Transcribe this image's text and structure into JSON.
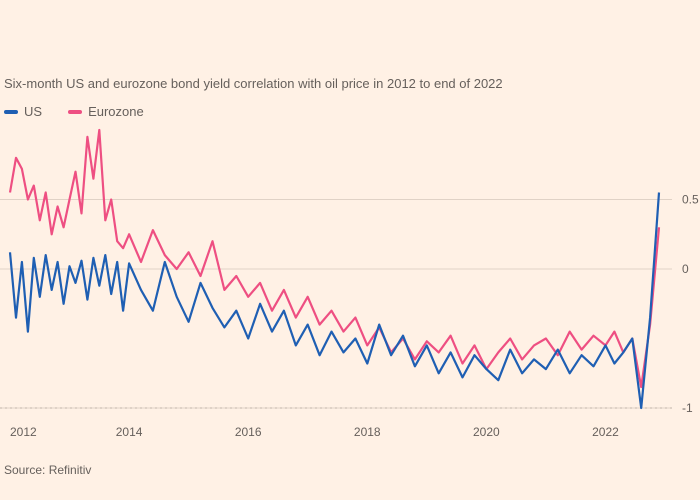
{
  "subtitle": "Six-month US and eurozone bond yield correlation with oil price in 2012 to end of 2022",
  "source": "Source: Refinitiv",
  "colors": {
    "background": "#fff1e5",
    "grid": "#e0d2c6",
    "series_us": "#1f5fb3",
    "series_eurozone": "#ee4f82"
  },
  "chart_data": {
    "type": "line",
    "x_range": [
      2012.0,
      2023.0
    ],
    "ylim": [
      -1.0,
      1.0
    ],
    "yticks": [
      -1.0,
      0.0,
      0.5
    ],
    "xticks": [
      "2012",
      "2014",
      "2016",
      "2018",
      "2020",
      "2022"
    ],
    "grid": true,
    "series": [
      {
        "name": "US",
        "color": "#1f5fb3",
        "x": [
          2012.0,
          2012.1,
          2012.2,
          2012.3,
          2012.4,
          2012.5,
          2012.6,
          2012.7,
          2012.8,
          2012.9,
          2013.0,
          2013.1,
          2013.2,
          2013.3,
          2013.4,
          2013.5,
          2013.6,
          2013.7,
          2013.8,
          2013.9,
          2014.0,
          2014.2,
          2014.4,
          2014.6,
          2014.8,
          2015.0,
          2015.2,
          2015.4,
          2015.6,
          2015.8,
          2016.0,
          2016.2,
          2016.4,
          2016.6,
          2016.8,
          2017.0,
          2017.2,
          2017.4,
          2017.6,
          2017.8,
          2018.0,
          2018.2,
          2018.4,
          2018.6,
          2018.8,
          2019.0,
          2019.2,
          2019.4,
          2019.6,
          2019.8,
          2020.0,
          2020.2,
          2020.4,
          2020.6,
          2020.8,
          2021.0,
          2021.2,
          2021.4,
          2021.6,
          2021.8,
          2022.0,
          2022.15,
          2022.3,
          2022.45,
          2022.6,
          2022.75,
          2022.9
        ],
        "values": [
          0.12,
          -0.35,
          0.05,
          -0.45,
          0.08,
          -0.2,
          0.1,
          -0.15,
          0.05,
          -0.25,
          0.02,
          -0.1,
          0.06,
          -0.22,
          0.08,
          -0.12,
          0.1,
          -0.18,
          0.05,
          -0.3,
          0.04,
          -0.15,
          -0.3,
          0.05,
          -0.2,
          -0.38,
          -0.1,
          -0.28,
          -0.42,
          -0.3,
          -0.5,
          -0.25,
          -0.45,
          -0.3,
          -0.55,
          -0.4,
          -0.62,
          -0.45,
          -0.6,
          -0.5,
          -0.68,
          -0.4,
          -0.62,
          -0.48,
          -0.7,
          -0.55,
          -0.75,
          -0.6,
          -0.78,
          -0.62,
          -0.72,
          -0.8,
          -0.58,
          -0.75,
          -0.65,
          -0.72,
          -0.58,
          -0.75,
          -0.62,
          -0.7,
          -0.55,
          -0.68,
          -0.6,
          -0.5,
          -1.0,
          -0.35,
          0.55
        ]
      },
      {
        "name": "Eurozone",
        "color": "#ee4f82",
        "x": [
          2012.0,
          2012.1,
          2012.2,
          2012.3,
          2012.4,
          2012.5,
          2012.6,
          2012.7,
          2012.8,
          2012.9,
          2013.0,
          2013.1,
          2013.2,
          2013.3,
          2013.4,
          2013.5,
          2013.6,
          2013.7,
          2013.8,
          2013.9,
          2014.0,
          2014.2,
          2014.4,
          2014.6,
          2014.8,
          2015.0,
          2015.2,
          2015.4,
          2015.6,
          2015.8,
          2016.0,
          2016.2,
          2016.4,
          2016.6,
          2016.8,
          2017.0,
          2017.2,
          2017.4,
          2017.6,
          2017.8,
          2018.0,
          2018.2,
          2018.4,
          2018.6,
          2018.8,
          2019.0,
          2019.2,
          2019.4,
          2019.6,
          2019.8,
          2020.0,
          2020.2,
          2020.4,
          2020.6,
          2020.8,
          2021.0,
          2021.2,
          2021.4,
          2021.6,
          2021.8,
          2022.0,
          2022.15,
          2022.3,
          2022.45,
          2022.6,
          2022.75,
          2022.9
        ],
        "values": [
          0.55,
          0.8,
          0.72,
          0.5,
          0.6,
          0.35,
          0.55,
          0.25,
          0.45,
          0.3,
          0.5,
          0.7,
          0.4,
          0.95,
          0.65,
          1.0,
          0.35,
          0.5,
          0.2,
          0.15,
          0.25,
          0.05,
          0.28,
          0.1,
          0.0,
          0.12,
          -0.05,
          0.2,
          -0.15,
          -0.05,
          -0.2,
          -0.1,
          -0.3,
          -0.15,
          -0.35,
          -0.2,
          -0.4,
          -0.3,
          -0.45,
          -0.35,
          -0.55,
          -0.42,
          -0.6,
          -0.5,
          -0.65,
          -0.52,
          -0.6,
          -0.48,
          -0.68,
          -0.55,
          -0.72,
          -0.6,
          -0.5,
          -0.65,
          -0.55,
          -0.5,
          -0.62,
          -0.45,
          -0.58,
          -0.48,
          -0.55,
          -0.45,
          -0.6,
          -0.5,
          -0.85,
          -0.4,
          0.3
        ]
      }
    ]
  }
}
